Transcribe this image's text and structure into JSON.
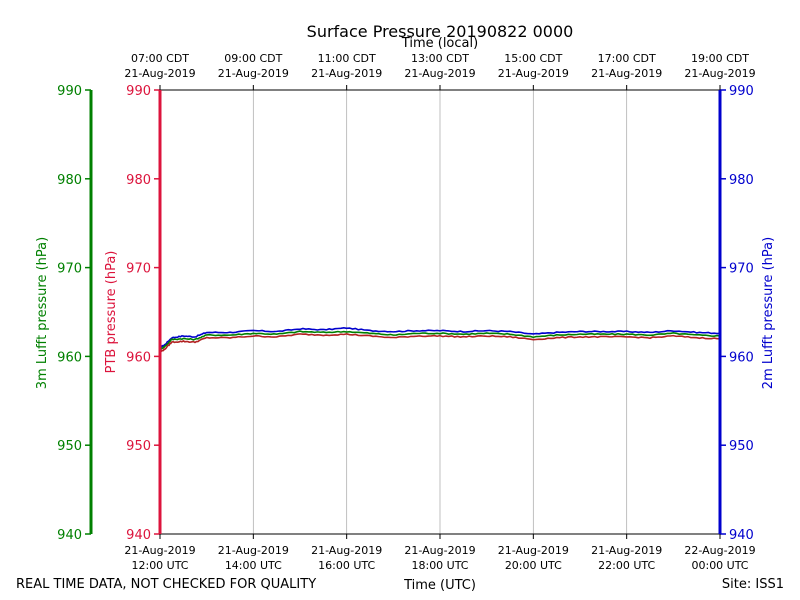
{
  "chart_data": {
    "type": "line",
    "title": "Surface Pressure 20190822 0000",
    "xlabel_bottom": "Time (UTC)",
    "xlabel_top": "Time (local)",
    "x_start": "2019-08-21T12:00Z",
    "x_end": "2019-08-22T00:00Z",
    "xlim_hours": [
      0,
      12
    ],
    "ylim": [
      940,
      990
    ],
    "yticks": [
      940,
      950,
      960,
      970,
      980,
      990
    ],
    "grid": "vertical",
    "bottom_ticks": [
      {
        "h": 0,
        "l1": "21-Aug-2019",
        "l2": "12:00 UTC"
      },
      {
        "h": 2,
        "l1": "21-Aug-2019",
        "l2": "14:00 UTC"
      },
      {
        "h": 4,
        "l1": "21-Aug-2019",
        "l2": "16:00 UTC"
      },
      {
        "h": 6,
        "l1": "21-Aug-2019",
        "l2": "18:00 UTC"
      },
      {
        "h": 8,
        "l1": "21-Aug-2019",
        "l2": "20:00 UTC"
      },
      {
        "h": 10,
        "l1": "21-Aug-2019",
        "l2": "22:00 UTC"
      },
      {
        "h": 12,
        "l1": "22-Aug-2019",
        "l2": "00:00 UTC"
      }
    ],
    "top_ticks": [
      {
        "h": 0,
        "l1": "07:00 CDT",
        "l2": "21-Aug-2019"
      },
      {
        "h": 2,
        "l1": "09:00 CDT",
        "l2": "21-Aug-2019"
      },
      {
        "h": 4,
        "l1": "11:00 CDT",
        "l2": "21-Aug-2019"
      },
      {
        "h": 6,
        "l1": "13:00 CDT",
        "l2": "21-Aug-2019"
      },
      {
        "h": 8,
        "l1": "15:00 CDT",
        "l2": "21-Aug-2019"
      },
      {
        "h": 10,
        "l1": "17:00 CDT",
        "l2": "21-Aug-2019"
      },
      {
        "h": 12,
        "l1": "19:00 CDT",
        "l2": "21-Aug-2019"
      }
    ],
    "axes": [
      {
        "id": "lufft3m",
        "label": "3m Lufft pressure (hPa)",
        "color": "#008000"
      },
      {
        "id": "ptb",
        "label": "PTB pressure (hPa)",
        "color": "#dc143c"
      },
      {
        "id": "lufft2m",
        "label": "2m Lufft pressure (hPa)",
        "color": "#0000cd"
      }
    ],
    "x": [
      0,
      0.1,
      0.25,
      0.5,
      0.75,
      1,
      1.5,
      2,
      2.5,
      3,
      3.5,
      4,
      4.5,
      5,
      5.5,
      6,
      6.5,
      7,
      7.5,
      8,
      8.5,
      9,
      9.5,
      10,
      10.5,
      11,
      11.5,
      12
    ],
    "series": [
      {
        "axis": "lufft2m",
        "color": "#0000cd",
        "values": [
          961.0,
          961.3,
          962.1,
          962.3,
          962.2,
          962.7,
          962.7,
          962.9,
          962.8,
          963.1,
          963.0,
          963.2,
          962.9,
          962.8,
          962.9,
          962.9,
          962.8,
          962.9,
          962.8,
          962.5,
          962.7,
          962.8,
          962.8,
          962.8,
          962.7,
          962.9,
          962.7,
          962.6
        ]
      },
      {
        "axis": "lufft3m",
        "color": "#008000",
        "values": [
          960.8,
          961.1,
          961.9,
          962.0,
          961.9,
          962.4,
          962.4,
          962.6,
          962.5,
          962.8,
          962.7,
          962.8,
          962.6,
          962.4,
          962.6,
          962.6,
          962.5,
          962.6,
          962.5,
          962.2,
          962.4,
          962.5,
          962.5,
          962.5,
          962.4,
          962.6,
          962.4,
          962.3
        ]
      },
      {
        "axis": "ptb",
        "color": "#b22222",
        "values": [
          960.5,
          960.8,
          961.6,
          961.7,
          961.6,
          962.1,
          962.1,
          962.3,
          962.2,
          962.5,
          962.4,
          962.5,
          962.3,
          962.1,
          962.3,
          962.3,
          962.2,
          962.3,
          962.2,
          961.9,
          962.1,
          962.2,
          962.2,
          962.2,
          962.1,
          962.3,
          962.1,
          962.0
        ]
      }
    ]
  },
  "footer": {
    "quality_note": "REAL TIME DATA, NOT CHECKED FOR QUALITY",
    "site": "Site: ISS1"
  }
}
